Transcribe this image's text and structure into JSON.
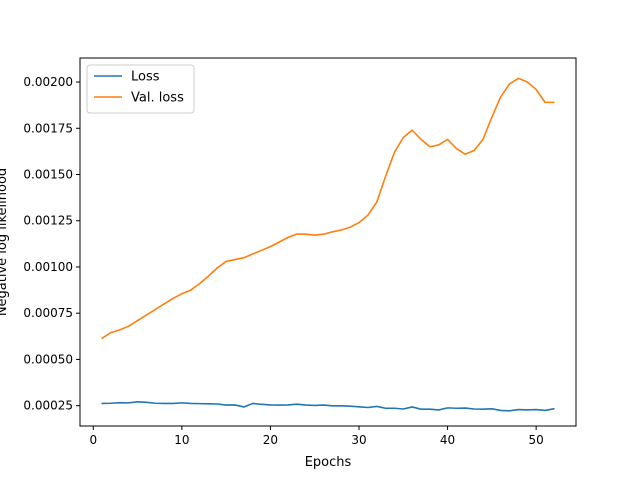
{
  "chart_data": {
    "type": "line",
    "xlabel": "Epochs",
    "ylabel": "Negative log likelihood",
    "xlim": [
      -1.5,
      54.5
    ],
    "ylim": [
      0.00014,
      0.00213
    ],
    "xticks": [
      0,
      10,
      20,
      30,
      40,
      50
    ],
    "yticks": [
      0.00025,
      0.0005,
      0.00075,
      0.001,
      0.00125,
      0.0015,
      0.00175,
      0.002
    ],
    "xtick_labels": [
      "0",
      "10",
      "20",
      "30",
      "40",
      "50"
    ],
    "ytick_labels": [
      "0.00025",
      "0.00050",
      "0.00075",
      "0.00100",
      "0.00125",
      "0.00150",
      "0.00175",
      "0.00200"
    ],
    "grid": false,
    "legend_position": "top-left",
    "x": [
      1,
      2,
      3,
      4,
      5,
      6,
      7,
      8,
      9,
      10,
      11,
      12,
      13,
      14,
      15,
      16,
      17,
      18,
      19,
      20,
      21,
      22,
      23,
      24,
      25,
      26,
      27,
      28,
      29,
      30,
      31,
      32,
      33,
      34,
      35,
      36,
      37,
      38,
      39,
      40,
      41,
      42,
      43,
      44,
      45,
      46,
      47,
      48,
      49,
      50,
      51,
      52
    ],
    "series": [
      {
        "name": "Loss",
        "color": "#1f77b4",
        "values": [
          0.000262,
          0.000263,
          0.000266,
          0.000265,
          0.000271,
          0.000268,
          0.000263,
          0.000262,
          0.000262,
          0.000265,
          0.000262,
          0.000261,
          0.00026,
          0.000259,
          0.000253,
          0.000254,
          0.000243,
          0.000262,
          0.000257,
          0.000254,
          0.000253,
          0.000254,
          0.000258,
          0.000253,
          0.000251,
          0.000253,
          0.000249,
          0.000249,
          0.000247,
          0.000244,
          0.00024,
          0.000246,
          0.000236,
          0.000236,
          0.000232,
          0.000243,
          0.000231,
          0.000231,
          0.000227,
          0.000238,
          0.000236,
          0.000237,
          0.000232,
          0.000231,
          0.000233,
          0.000224,
          0.000222,
          0.000229,
          0.000227,
          0.000229,
          0.000224,
          0.000233
        ]
      },
      {
        "name": "Val. loss",
        "color": "#ff7f0e",
        "values": [
          0.000615,
          0.000645,
          0.00066,
          0.00068,
          0.00071,
          0.00074,
          0.00077,
          0.0008,
          0.00083,
          0.000855,
          0.000875,
          0.00091,
          0.00095,
          0.000995,
          0.00103,
          0.00104,
          0.00105,
          0.00107,
          0.00109,
          0.00111,
          0.001135,
          0.00116,
          0.001178,
          0.001177,
          0.001172,
          0.001177,
          0.00119,
          0.0012,
          0.001215,
          0.00124,
          0.00128,
          0.00135,
          0.00149,
          0.00162,
          0.0017,
          0.00174,
          0.00169,
          0.00165,
          0.00166,
          0.00169,
          0.00164,
          0.00161,
          0.00163,
          0.00169,
          0.00181,
          0.00192,
          0.00199,
          0.00202,
          0.002,
          0.00196,
          0.00189,
          0.00189
        ]
      }
    ]
  }
}
